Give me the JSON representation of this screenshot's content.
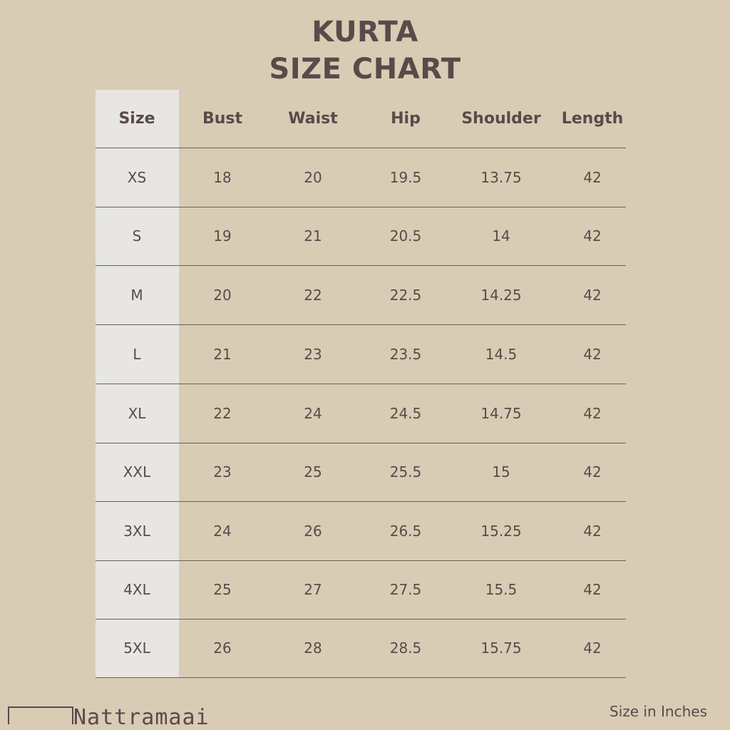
{
  "title": {
    "line1": "KURTA",
    "line2": "SIZE CHART"
  },
  "table": {
    "headers": [
      "Size",
      "Bust",
      "Waist",
      "Hip",
      "Shoulder",
      "Length"
    ],
    "rows": [
      [
        "XS",
        "18",
        "20",
        "19.5",
        "13.75",
        "42"
      ],
      [
        "S",
        "19",
        "21",
        "20.5",
        "14",
        "42"
      ],
      [
        "M",
        "20",
        "22",
        "22.5",
        "14.25",
        "42"
      ],
      [
        "L",
        "21",
        "23",
        "23.5",
        "14.5",
        "42"
      ],
      [
        "XL",
        "22",
        "24",
        "24.5",
        "14.75",
        "42"
      ],
      [
        "XXL",
        "23",
        "25",
        "25.5",
        "15",
        "42"
      ],
      [
        "3XL",
        "24",
        "26",
        "26.5",
        "15.25",
        "42"
      ],
      [
        "4XL",
        "25",
        "27",
        "27.5",
        "15.5",
        "42"
      ],
      [
        "5XL",
        "26",
        "28",
        "28.5",
        "15.75",
        "42"
      ]
    ]
  },
  "footer": {
    "brand_logo": "Nattramaai",
    "unit_note": "Size in Inches"
  },
  "colors": {
    "background": "#d8ccb5",
    "size_column": "#e8e6e2",
    "text": "#5a4a4a"
  }
}
